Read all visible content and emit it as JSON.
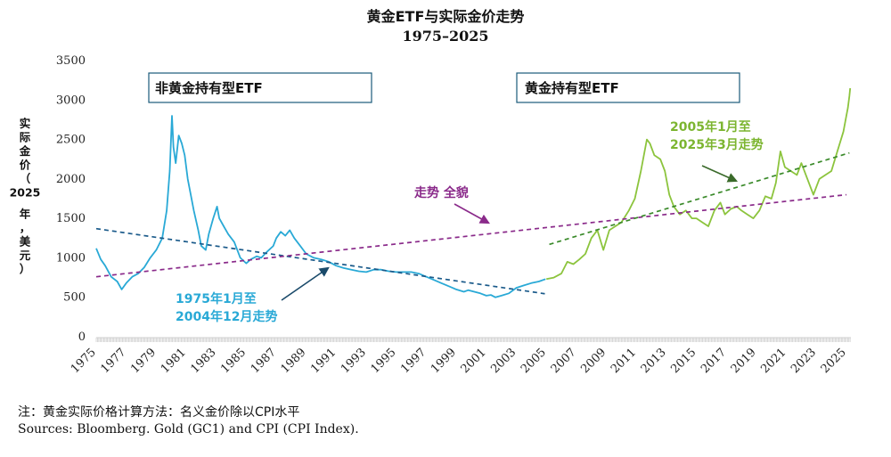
{
  "chart_data": {
    "type": "line",
    "title": "黄金ETF与实际金价走势",
    "subtitle": "1975–2025",
    "ylabel_lines": [
      "实",
      "际",
      "金",
      "价",
      "（",
      "2025",
      "年",
      "，",
      "美",
      "元",
      "）"
    ],
    "ylim": [
      0,
      3500
    ],
    "yticks": [
      0,
      500,
      1000,
      1500,
      2000,
      2500,
      3000,
      3500
    ],
    "xlim": [
      1975,
      2025.3
    ],
    "xticks": [
      "1975",
      "1977",
      "1979",
      "1981",
      "1983",
      "1985",
      "1987",
      "1989",
      "1991",
      "1993",
      "1995",
      "1997",
      "1999",
      "2001",
      "2003",
      "2005",
      "2007",
      "2009",
      "2011",
      "2013",
      "2015",
      "2017",
      "2019",
      "2021",
      "2023",
      "2025"
    ],
    "grid": false,
    "series": [
      {
        "color": "#29a9d6",
        "x": [
          1975.0,
          1975.3,
          1975.6,
          1976.0,
          1976.4,
          1976.7,
          1977.0,
          1977.4,
          1977.8,
          1978.2,
          1978.6,
          1979.0,
          1979.4,
          1979.7,
          1979.9,
          1980.05,
          1980.15,
          1980.3,
          1980.5,
          1980.7,
          1980.9,
          1981.1,
          1981.3,
          1981.5,
          1981.8,
          1982.0,
          1982.3,
          1982.5,
          1982.8,
          1983.05,
          1983.2,
          1983.5,
          1983.8,
          1984.2,
          1984.6,
          1985.0,
          1985.3,
          1985.7,
          1986.0,
          1986.4,
          1986.8,
          1987.0,
          1987.3,
          1987.6,
          1987.9,
          1988.2,
          1988.6,
          1989.0,
          1989.5,
          1990.0,
          1990.5,
          1991.0,
          1991.5,
          1992.0,
          1992.5,
          1993.0,
          1993.5,
          1994.0,
          1994.5,
          1995.0,
          1995.5,
          1996.0,
          1996.5,
          1997.0,
          1997.5,
          1998.0,
          1998.5,
          1999.0,
          1999.5,
          1999.8,
          2000.2,
          2000.6,
          2001.0,
          2001.3,
          2001.6,
          2002.0,
          2002.5,
          2003.0,
          2003.5,
          2004.0,
          2004.5,
          2004.95
        ],
        "y": [
          1120,
          980,
          900,
          760,
          700,
          600,
          680,
          760,
          800,
          880,
          1000,
          1100,
          1250,
          1600,
          2100,
          2800,
          2400,
          2200,
          2550,
          2450,
          2300,
          2000,
          1800,
          1600,
          1350,
          1150,
          1100,
          1300,
          1500,
          1650,
          1500,
          1400,
          1300,
          1200,
          1000,
          930,
          980,
          1020,
          1000,
          1080,
          1150,
          1250,
          1330,
          1280,
          1350,
          1250,
          1150,
          1050,
          1000,
          980,
          950,
          900,
          870,
          850,
          830,
          820,
          850,
          850,
          830,
          820,
          820,
          820,
          800,
          760,
          720,
          680,
          640,
          600,
          570,
          590,
          570,
          550,
          520,
          530,
          500,
          520,
          550,
          620,
          650,
          680,
          700,
          730
        ]
      },
      {
        "color": "#8cc43d",
        "x": [
          2005.0,
          2005.5,
          2006.0,
          2006.4,
          2006.8,
          2007.2,
          2007.6,
          2008.0,
          2008.4,
          2008.8,
          2009.2,
          2009.6,
          2010.0,
          2010.5,
          2010.9,
          2011.3,
          2011.7,
          2011.9,
          2012.2,
          2012.6,
          2012.9,
          2013.2,
          2013.5,
          2013.9,
          2014.3,
          2014.7,
          2015.0,
          2015.4,
          2015.8,
          2016.2,
          2016.6,
          2016.9,
          2017.3,
          2017.7,
          2018.0,
          2018.4,
          2018.8,
          2019.2,
          2019.6,
          2020.0,
          2020.3,
          2020.6,
          2020.9,
          2021.3,
          2021.7,
          2022.0,
          2022.4,
          2022.8,
          2023.2,
          2023.6,
          2024.0,
          2024.4,
          2024.8,
          2025.0,
          2025.1,
          2025.2,
          2025.25
        ],
        "y": [
          730,
          750,
          800,
          950,
          920,
          980,
          1050,
          1250,
          1350,
          1100,
          1350,
          1400,
          1450,
          1600,
          1750,
          2100,
          2500,
          2450,
          2300,
          2250,
          2100,
          1800,
          1650,
          1550,
          1600,
          1500,
          1500,
          1450,
          1400,
          1600,
          1700,
          1550,
          1620,
          1650,
          1600,
          1550,
          1500,
          1600,
          1780,
          1750,
          1950,
          2350,
          2150,
          2100,
          2050,
          2200,
          2000,
          1800,
          2000,
          2050,
          2100,
          2350,
          2600,
          2800,
          2900,
          3050,
          3150
        ]
      }
    ],
    "trendlines": [
      {
        "color": "#1a5a8a",
        "x": [
          1975,
          2004.9
        ],
        "y": [
          1370,
          545
        ]
      },
      {
        "color": "#8a2a8a",
        "x": [
          1975,
          2025
        ],
        "y": [
          760,
          1800
        ]
      },
      {
        "color": "#3a8a2a",
        "x": [
          2005.2,
          2025.2
        ],
        "y": [
          1170,
          2330
        ]
      }
    ],
    "boxes": [
      "非黄金持有型ETF",
      "黄金持有型ETF"
    ],
    "annotations": {
      "full_period": "走势 全貌",
      "blue_period": [
        "1975年1月至",
        "2004年12月走势"
      ],
      "green_period": [
        "2005年1月至",
        "2025年3月走势"
      ]
    },
    "colors": {
      "blue_series": "#29a9d6",
      "green_series": "#8cc43d",
      "purple_trend": "#8a2a8a",
      "blue_text": "#29a9d6",
      "green_text": "#7cb530",
      "purple_text": "#8a2a8a",
      "box_border": "#1a5a7a"
    }
  },
  "notes": {
    "note1": "注：黄金实际价格计算方法：名义金价除以CPI水平",
    "note2": "Sources: Bloomberg. Gold (GC1) and CPI (CPI Index)."
  }
}
